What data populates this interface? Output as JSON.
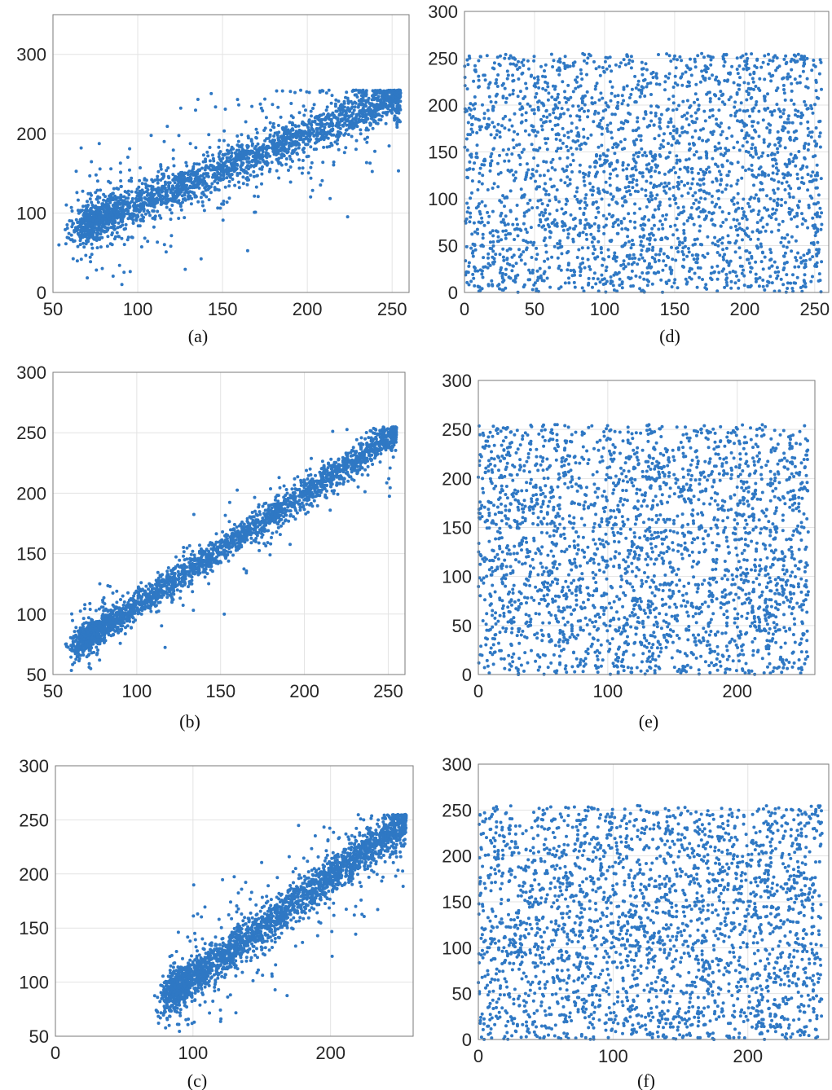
{
  "chart_data": [
    {
      "id": "a",
      "type": "scatter",
      "caption": "(a)",
      "xlim": [
        50,
        260
      ],
      "ylim": [
        0,
        350
      ],
      "xticks": [
        50,
        100,
        150,
        200,
        250
      ],
      "yticks": [
        0,
        100,
        200,
        300
      ],
      "xtick_labels": [
        "50",
        "100",
        "150",
        "200",
        "250"
      ],
      "ytick_labels": [
        "0",
        "100",
        "200",
        "300"
      ],
      "grid": true,
      "marker_color": "#2f78c4",
      "distribution": "correlated",
      "trend": {
        "x": [
          70,
          255
        ],
        "y": [
          85,
          248
        ]
      },
      "spread": 12,
      "outlier_rate": 0.16,
      "point_count": 2600
    },
    {
      "id": "b",
      "type": "scatter",
      "caption": "(b)",
      "xlim": [
        50,
        260
      ],
      "ylim": [
        50,
        300
      ],
      "xticks": [
        50,
        100,
        150,
        200,
        250
      ],
      "yticks": [
        50,
        100,
        150,
        200,
        250,
        300
      ],
      "xtick_labels": [
        "50",
        "100",
        "150",
        "200",
        "250"
      ],
      "ytick_labels": [
        "50",
        "100",
        "150",
        "200",
        "250",
        "300"
      ],
      "grid": true,
      "marker_color": "#2f78c4",
      "distribution": "correlated",
      "trend": {
        "x": [
          70,
          255
        ],
        "y": [
          80,
          250
        ]
      },
      "spread": 6,
      "outlier_rate": 0.08,
      "point_count": 2600
    },
    {
      "id": "c",
      "type": "scatter",
      "caption": "(c)",
      "xlim": [
        0,
        260
      ],
      "ylim": [
        50,
        300
      ],
      "xticks": [
        0,
        100,
        200
      ],
      "yticks": [
        50,
        100,
        150,
        200,
        250,
        300
      ],
      "xtick_labels": [
        "0",
        "100",
        "200"
      ],
      "ytick_labels": [
        "50",
        "100",
        "150",
        "200",
        "250",
        "300"
      ],
      "grid": true,
      "marker_color": "#2f78c4",
      "distribution": "correlated",
      "trend": {
        "x": [
          85,
          255
        ],
        "y": [
          90,
          248
        ]
      },
      "spread": 9,
      "outlier_rate": 0.12,
      "point_count": 2600
    },
    {
      "id": "d",
      "type": "scatter",
      "caption": "(d)",
      "xlim": [
        0,
        260
      ],
      "ylim": [
        0,
        300
      ],
      "xticks": [
        0,
        50,
        100,
        150,
        200,
        250
      ],
      "yticks": [
        0,
        50,
        100,
        150,
        200,
        250,
        300
      ],
      "xtick_labels": [
        "0",
        "50",
        "100",
        "150",
        "200",
        "250"
      ],
      "ytick_labels": [
        "0",
        "50",
        "100",
        "150",
        "200",
        "250",
        "300"
      ],
      "grid": true,
      "marker_color": "#2f78c4",
      "distribution": "uniform",
      "value_range": [
        0,
        255
      ],
      "point_count": 2600
    },
    {
      "id": "e",
      "type": "scatter",
      "caption": "(e)",
      "xlim": [
        0,
        260
      ],
      "ylim": [
        0,
        300
      ],
      "xticks": [
        0,
        100,
        200
      ],
      "yticks": [
        0,
        50,
        100,
        150,
        200,
        250,
        300
      ],
      "xtick_labels": [
        "0",
        "100",
        "200"
      ],
      "ytick_labels": [
        "0",
        "50",
        "100",
        "150",
        "200",
        "250",
        "300"
      ],
      "grid": true,
      "marker_color": "#2f78c4",
      "distribution": "uniform",
      "value_range": [
        0,
        255
      ],
      "point_count": 2600
    },
    {
      "id": "f",
      "type": "scatter",
      "caption": "(f)",
      "xlim": [
        0,
        260
      ],
      "ylim": [
        0,
        300
      ],
      "xticks": [
        0,
        100,
        200
      ],
      "yticks": [
        0,
        50,
        100,
        150,
        200,
        250,
        300
      ],
      "xtick_labels": [
        "0",
        "100",
        "200"
      ],
      "ytick_labels": [
        "0",
        "50",
        "100",
        "150",
        "200",
        "250",
        "300"
      ],
      "grid": true,
      "marker_color": "#2f78c4",
      "distribution": "uniform",
      "value_range": [
        0,
        255
      ],
      "point_count": 2600
    }
  ]
}
